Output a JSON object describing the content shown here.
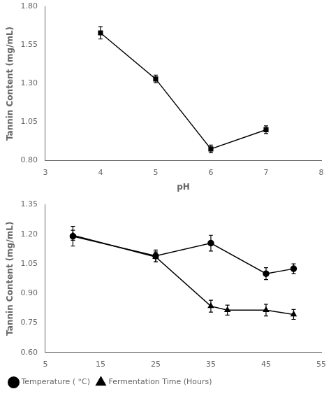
{
  "chart_data": [
    {
      "type": "line",
      "xlabel": "pH",
      "ylabel": "Tannin Content (mg/mL)",
      "xlim": [
        3,
        8
      ],
      "xticks": [
        3,
        4,
        5,
        6,
        7,
        8
      ],
      "ylim": [
        0.8,
        1.8
      ],
      "yticks": [
        {
          "value": 0.8,
          "label": "0.80"
        },
        1.05,
        {
          "value": 1.3,
          "label": "1.30"
        },
        1.55,
        {
          "value": 1.8,
          "label": "1.80"
        }
      ],
      "grid": false,
      "series": [
        {
          "color": "#000000",
          "marker": "square",
          "x": [
            4,
            5,
            6,
            7
          ],
          "values": [
            1.63,
            1.33,
            0.875,
            1.0
          ],
          "errors": [
            0.04,
            0.025,
            0.025,
            0.025
          ]
        }
      ]
    },
    {
      "type": "line",
      "ylabel": "Tannin Content (mg/mL)",
      "xlim": [
        5,
        55
      ],
      "xticks": [
        5,
        15,
        25,
        35,
        45,
        55
      ],
      "ylim": [
        0.6,
        1.35
      ],
      "yticks": [
        {
          "value": 0.6,
          "label": "0.60"
        },
        0.75,
        {
          "value": 0.9,
          "label": "0.90"
        },
        1.05,
        {
          "value": 1.2,
          "label": "1.20"
        },
        1.35
      ],
      "grid": false,
      "legend": "lower left",
      "series": [
        {
          "name": "Temperature ( °C)",
          "color": "#000000",
          "marker": "circle",
          "x": [
            10,
            25,
            35,
            45,
            50
          ],
          "values": [
            1.19,
            1.09,
            1.155,
            1.0,
            1.025
          ],
          "errors": [
            0.05,
            0.03,
            0.04,
            0.03,
            0.025
          ]
        },
        {
          "name": "Fermentation Time (Hours)",
          "color": "#000000",
          "marker": "triangle",
          "x": [
            10,
            25,
            35,
            38,
            45,
            50
          ],
          "values": [
            1.195,
            1.085,
            0.835,
            0.815,
            0.815,
            0.793
          ],
          "errors": [
            0.025,
            0.025,
            0.03,
            0.025,
            0.03,
            0.025
          ]
        }
      ]
    }
  ]
}
